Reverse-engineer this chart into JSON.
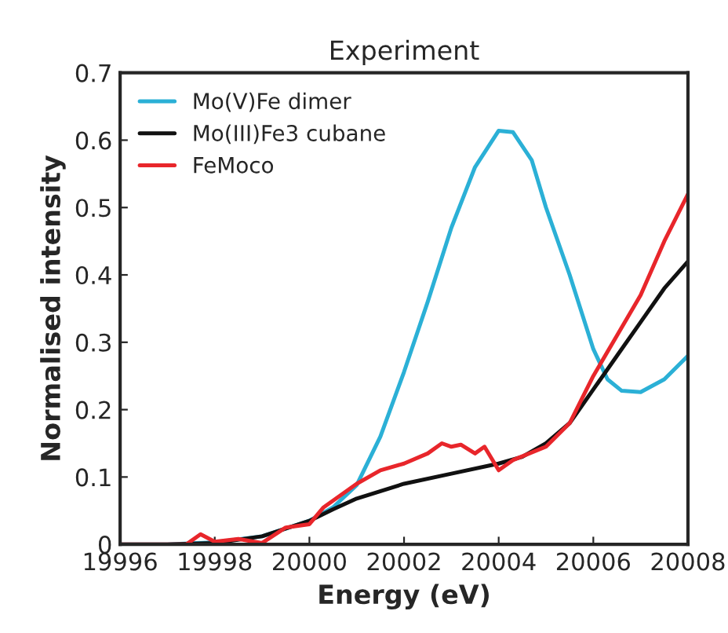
{
  "chart_data": {
    "type": "line",
    "title": "Experiment",
    "xlabel": "Energy (eV)",
    "ylabel": "Normalised intensity",
    "xlim": [
      19996,
      20008
    ],
    "xticks": [
      19996,
      19998,
      20000,
      20002,
      20004,
      20006,
      20008
    ],
    "ylim": [
      0,
      0.7
    ],
    "yticks": [
      {
        "value": 0,
        "label": "0"
      },
      0.1,
      0.2,
      0.3,
      0.4,
      0.5,
      0.6,
      0.7
    ],
    "legend": "top left",
    "grid": false,
    "series": [
      {
        "name": "Mo(V)Fe dimer",
        "color": "#2bb0d6",
        "x": [
          19996,
          19997,
          19998,
          19999,
          20000,
          20000.5,
          20001,
          20001.5,
          20002,
          20002.5,
          20003,
          20003.5,
          20004,
          20004.3,
          20004.7,
          20005,
          20005.5,
          20006,
          20006.3,
          20006.6,
          20007,
          20007.5,
          20008
        ],
        "values": [
          0,
          0,
          0.003,
          0.012,
          0.035,
          0.055,
          0.088,
          0.16,
          0.256,
          0.36,
          0.47,
          0.56,
          0.614,
          0.612,
          0.57,
          0.5,
          0.4,
          0.29,
          0.245,
          0.228,
          0.226,
          0.245,
          0.28
        ]
      },
      {
        "name": "Mo(III)Fe3 cubane",
        "color": "#111111",
        "x": [
          19996,
          19997,
          19998,
          19999,
          20000,
          20000.5,
          20001,
          20002,
          20003,
          20004,
          20004.5,
          20005,
          20005.5,
          20006,
          20006.5,
          20007,
          20007.5,
          20008
        ],
        "values": [
          0,
          0,
          0.002,
          0.012,
          0.035,
          0.052,
          0.068,
          0.09,
          0.105,
          0.12,
          0.13,
          0.15,
          0.18,
          0.23,
          0.28,
          0.33,
          0.38,
          0.42
        ]
      },
      {
        "name": "FeMoco",
        "color": "#e8262b",
        "x": [
          19996,
          19997.4,
          19997.7,
          19998,
          19998.5,
          19999,
          19999.5,
          20000,
          20000.3,
          20001,
          20001.5,
          20002,
          20002.5,
          20002.8,
          20003,
          20003.2,
          20003.5,
          20003.7,
          20004,
          20004.3,
          20005,
          20005.5,
          20006,
          20006.5,
          20007,
          20007.5,
          20008
        ],
        "values": [
          0,
          0,
          0.015,
          0.004,
          0.008,
          0.002,
          0.025,
          0.03,
          0.055,
          0.09,
          0.11,
          0.12,
          0.135,
          0.15,
          0.145,
          0.148,
          0.135,
          0.145,
          0.11,
          0.125,
          0.145,
          0.18,
          0.25,
          0.31,
          0.37,
          0.45,
          0.52
        ]
      }
    ]
  }
}
